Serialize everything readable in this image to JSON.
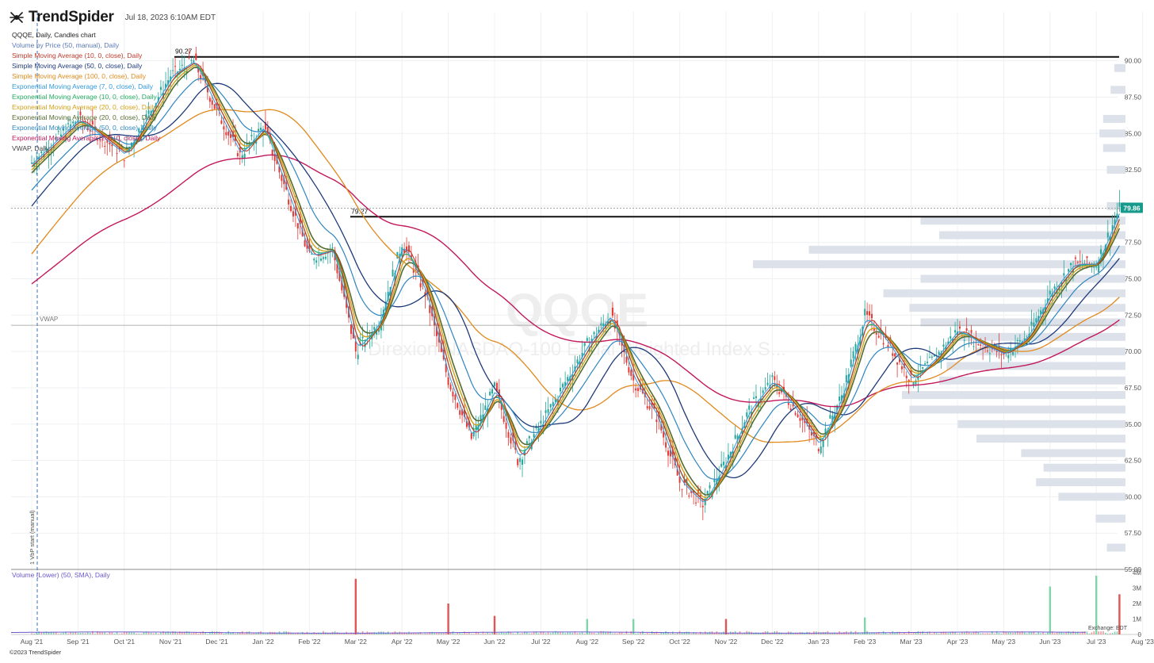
{
  "app": {
    "brand": "TrendSpider",
    "timestamp": "Jul 18, 2023 6:10AM EDT",
    "copyright": "©2023 TrendSpider",
    "exchange": "Exchange: EDT"
  },
  "legend": [
    {
      "text": "QQQE, Daily, Candles chart",
      "color": "#222222"
    },
    {
      "text": "Volume by Price (50, manual), Daily",
      "color": "#5a7ab8"
    },
    {
      "text": "Simple Moving Average (10, 0, close), Daily",
      "color": "#c0392b"
    },
    {
      "text": "Simple Moving Average (50, 0, close), Daily",
      "color": "#1f3a7a"
    },
    {
      "text": "Simple Moving Average (100, 0, close), Daily",
      "color": "#e08a1e"
    },
    {
      "text": "Exponential Moving Average (7, 0, close), Daily",
      "color": "#3498db"
    },
    {
      "text": "Exponential Moving Average (10, 0, close), Daily",
      "color": "#27ae60"
    },
    {
      "text": "Exponential Moving Average (20, 0, close), Daily",
      "color": "#d4a017"
    },
    {
      "text": "Exponential Moving Average (20, 0, close), Daily",
      "color": "#556b2f"
    },
    {
      "text": "Exponential Moving Average (50, 0, close), Daily",
      "color": "#2e86c1"
    },
    {
      "text": "Exponential Moving Average (200, 0, close), Daily",
      "color": "#c2185b"
    },
    {
      "text": "VWAP, Daily",
      "color": "#444444"
    }
  ],
  "lower_legend": "Volume (Lower) (50, SMA), Daily",
  "chart_data": [
    {
      "type": "candlestick",
      "ticker": "QQQE",
      "subtitle": "Direxion NASDAQ-100 Equal Weighted Index S...",
      "x_tick_labels": [
        "Aug '21",
        "Sep '21",
        "Oct '21",
        "Nov '21",
        "Dec '21",
        "Jan '22",
        "Feb '22",
        "Mar '22",
        "Apr '22",
        "May '22",
        "Jun '22",
        "Jul '22",
        "Aug '22",
        "Sep '22",
        "Oct '22",
        "Nov '22",
        "Dec '22",
        "Jan '23",
        "Feb '23",
        "Mar '23",
        "Apr '23",
        "May '23",
        "Jun '23",
        "Jul '23",
        "Aug '23"
      ],
      "y_tick_labels": [
        "55.00",
        "57.50",
        "60.00",
        "62.50",
        "65.00",
        "67.50",
        "70.00",
        "72.50",
        "75.00",
        "77.50",
        "80.00",
        "82.50",
        "85.00",
        "87.50",
        "90.00"
      ],
      "ylim": [
        55,
        92
      ],
      "current_price": "79.86",
      "horizontal_levels": [
        {
          "label": "90.27",
          "value": 90.27
        },
        {
          "label": "79.27",
          "value": 79.27
        }
      ],
      "vwap": {
        "label": "VWAP",
        "value": 71.8
      },
      "vbp_start_label": "1 VbP start (manual)",
      "price_path": [
        {
          "x": "Aug '21",
          "y": 83.0
        },
        {
          "x": "Sep '21",
          "y": 86.0
        },
        {
          "x": "Oct '21",
          "y": 83.5
        },
        {
          "x": "Nov '21",
          "y": 89.0
        },
        {
          "x": "Nov '21+",
          "y": 90.0
        },
        {
          "x": "Dec '21",
          "y": 86.5
        },
        {
          "x": "Dec '21+",
          "y": 83.5
        },
        {
          "x": "Jan '22",
          "y": 85.5
        },
        {
          "x": "Jan '22+",
          "y": 81.0
        },
        {
          "x": "Feb '22",
          "y": 76.5
        },
        {
          "x": "Feb '22+",
          "y": 77.0
        },
        {
          "x": "Mar '22",
          "y": 70.0
        },
        {
          "x": "Mar '22+",
          "y": 72.0
        },
        {
          "x": "Apr '22",
          "y": 77.5
        },
        {
          "x": "Apr '22+",
          "y": 74.0
        },
        {
          "x": "May '22",
          "y": 68.0
        },
        {
          "x": "May '22+",
          "y": 64.0
        },
        {
          "x": "Jun '22",
          "y": 67.5
        },
        {
          "x": "Jun '22+",
          "y": 62.5
        },
        {
          "x": "Jul '22",
          "y": 65.0
        },
        {
          "x": "Aug '22",
          "y": 70.5
        },
        {
          "x": "Aug '22+",
          "y": 72.5
        },
        {
          "x": "Sep '22",
          "y": 68.0
        },
        {
          "x": "Sep '22+",
          "y": 65.5
        },
        {
          "x": "Oct '22",
          "y": 61.0
        },
        {
          "x": "Oct '22+",
          "y": 59.5
        },
        {
          "x": "Nov '22",
          "y": 62.5
        },
        {
          "x": "Nov '22+",
          "y": 66.0
        },
        {
          "x": "Dec '22",
          "y": 68.0
        },
        {
          "x": "Dec '22+",
          "y": 66.0
        },
        {
          "x": "Jan '23",
          "y": 63.5
        },
        {
          "x": "Jan '23+",
          "y": 67.0
        },
        {
          "x": "Feb '23",
          "y": 72.5
        },
        {
          "x": "Feb '23+",
          "y": 70.5
        },
        {
          "x": "Mar '23",
          "y": 68.0
        },
        {
          "x": "Mar '23+",
          "y": 69.5
        },
        {
          "x": "Apr '23",
          "y": 71.5
        },
        {
          "x": "Apr '23+",
          "y": 70.5
        },
        {
          "x": "May '23",
          "y": 69.8
        },
        {
          "x": "May '23+",
          "y": 71.0
        },
        {
          "x": "Jun '23",
          "y": 74.0
        },
        {
          "x": "Jun '23+",
          "y": 76.0
        },
        {
          "x": "Jul '23",
          "y": 76.0
        },
        {
          "x": "Jul '23+",
          "y": 79.86
        }
      ],
      "volume_by_price": [
        {
          "price": 56.5,
          "volume": 0.05
        },
        {
          "price": 58.5,
          "volume": 0.08
        },
        {
          "price": 60.0,
          "volume": 0.18
        },
        {
          "price": 61.0,
          "volume": 0.24
        },
        {
          "price": 62.0,
          "volume": 0.22
        },
        {
          "price": 63.0,
          "volume": 0.28
        },
        {
          "price": 64.0,
          "volume": 0.4
        },
        {
          "price": 65.0,
          "volume": 0.45
        },
        {
          "price": 66.0,
          "volume": 0.58
        },
        {
          "price": 67.0,
          "volume": 0.6
        },
        {
          "price": 68.0,
          "volume": 0.5
        },
        {
          "price": 69.0,
          "volume": 0.48
        },
        {
          "price": 70.0,
          "volume": 0.4
        },
        {
          "price": 71.0,
          "volume": 0.45
        },
        {
          "price": 72.0,
          "volume": 0.55
        },
        {
          "price": 73.0,
          "volume": 0.58
        },
        {
          "price": 74.0,
          "volume": 0.65
        },
        {
          "price": 75.0,
          "volume": 0.55
        },
        {
          "price": 76.0,
          "volume": 1.0
        },
        {
          "price": 77.0,
          "volume": 0.85
        },
        {
          "price": 78.0,
          "volume": 0.5
        },
        {
          "price": 79.0,
          "volume": 0.55
        },
        {
          "price": 80.0,
          "volume": 0.05
        },
        {
          "price": 82.5,
          "volume": 0.05
        },
        {
          "price": 84.0,
          "volume": 0.06
        },
        {
          "price": 85.0,
          "volume": 0.07
        },
        {
          "price": 86.0,
          "volume": 0.06
        },
        {
          "price": 88.0,
          "volume": 0.04
        },
        {
          "price": 89.5,
          "volume": 0.03
        }
      ]
    },
    {
      "type": "bar",
      "title": "Volume (Lower) (50, SMA), Daily",
      "y_tick_labels": [
        "0",
        "1M",
        "2M",
        "3M",
        "4M"
      ],
      "ylim": [
        0,
        4000000
      ],
      "spikes": [
        {
          "x": "Mar '22",
          "value": 3600000,
          "direction": "down"
        },
        {
          "x": "May '22",
          "value": 2000000,
          "direction": "down"
        },
        {
          "x": "Jun '22",
          "value": 1200000,
          "direction": "down"
        },
        {
          "x": "Aug '22",
          "value": 1000000,
          "direction": "up"
        },
        {
          "x": "Sep '22",
          "value": 1000000,
          "direction": "up"
        },
        {
          "x": "Nov '22",
          "value": 1000000,
          "direction": "down"
        },
        {
          "x": "Feb '23",
          "value": 1100000,
          "direction": "up"
        },
        {
          "x": "Jun '23",
          "value": 3100000,
          "direction": "up"
        },
        {
          "x": "Jul '23",
          "value": 3800000,
          "direction": "up"
        },
        {
          "x": "Jul '23+",
          "value": 2600000,
          "direction": "down"
        }
      ]
    }
  ]
}
